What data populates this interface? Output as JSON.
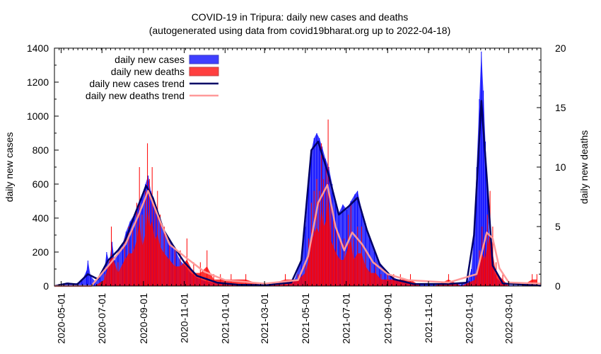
{
  "chart_data": {
    "type": "bar",
    "title": "COVID-19 in Tripura: daily new cases and deaths",
    "subtitle": "(autogenerated using data from covid19bharat.org up to 2022-04-18)",
    "ylabel": "daily new cases",
    "y2label": "daily new deaths",
    "ylim": [
      0,
      1400
    ],
    "y2lim": [
      0,
      20
    ],
    "xlim": [
      "2020-04-21",
      "2022-04-18"
    ],
    "yticks": [
      "0",
      "200",
      "400",
      "600",
      "800",
      "1000",
      "1200",
      "1400"
    ],
    "y2ticks": [
      "0",
      "5",
      "10",
      "15",
      "20"
    ],
    "xticks": [
      "2020-05-01",
      "2020-07-01",
      "2020-09-01",
      "2020-11-01",
      "2021-01-01",
      "2021-03-01",
      "2021-05-01",
      "2021-07-01",
      "2021-09-01",
      "2021-11-01",
      "2022-01-01",
      "2022-03-01"
    ],
    "legend_position": "top-left",
    "grid": false,
    "colors": {
      "cases": "#0000ff",
      "deaths": "#ff0000",
      "cases_trend": "#000066",
      "deaths_trend": "#ff9999"
    },
    "series": [
      {
        "name": "daily new cases",
        "axis": "left",
        "style": "bars",
        "points": [
          [
            "2020-04-25",
            0
          ],
          [
            "2020-05-05",
            15
          ],
          [
            "2020-05-12",
            20
          ],
          [
            "2020-05-20",
            10
          ],
          [
            "2020-06-01",
            30
          ],
          [
            "2020-06-08",
            90
          ],
          [
            "2020-06-10",
            150
          ],
          [
            "2020-06-14",
            60
          ],
          [
            "2020-06-20",
            30
          ],
          [
            "2020-06-28",
            50
          ],
          [
            "2020-07-05",
            110
          ],
          [
            "2020-07-08",
            200
          ],
          [
            "2020-07-12",
            140
          ],
          [
            "2020-07-16",
            260
          ],
          [
            "2020-07-20",
            150
          ],
          [
            "2020-07-25",
            200
          ],
          [
            "2020-08-01",
            250
          ],
          [
            "2020-08-06",
            320
          ],
          [
            "2020-08-12",
            380
          ],
          [
            "2020-08-18",
            420
          ],
          [
            "2020-08-24",
            480
          ],
          [
            "2020-08-30",
            540
          ],
          [
            "2020-09-04",
            600
          ],
          [
            "2020-09-08",
            650
          ],
          [
            "2020-09-12",
            560
          ],
          [
            "2020-09-16",
            520
          ],
          [
            "2020-09-20",
            450
          ],
          [
            "2020-09-26",
            380
          ],
          [
            "2020-10-02",
            320
          ],
          [
            "2020-10-08",
            270
          ],
          [
            "2020-10-14",
            240
          ],
          [
            "2020-10-20",
            200
          ],
          [
            "2020-10-26",
            150
          ],
          [
            "2020-11-02",
            120
          ],
          [
            "2020-11-10",
            80
          ],
          [
            "2020-11-20",
            50
          ],
          [
            "2020-12-01",
            30
          ],
          [
            "2020-12-15",
            20
          ],
          [
            "2021-01-01",
            10
          ],
          [
            "2021-01-20",
            8
          ],
          [
            "2021-02-10",
            5
          ],
          [
            "2021-03-01",
            4
          ],
          [
            "2021-03-20",
            5
          ],
          [
            "2021-04-05",
            10
          ],
          [
            "2021-04-15",
            40
          ],
          [
            "2021-04-25",
            150
          ],
          [
            "2021-05-01",
            350
          ],
          [
            "2021-05-06",
            600
          ],
          [
            "2021-05-10",
            800
          ],
          [
            "2021-05-14",
            870
          ],
          [
            "2021-05-18",
            900
          ],
          [
            "2021-05-22",
            870
          ],
          [
            "2021-05-26",
            820
          ],
          [
            "2021-05-31",
            750
          ],
          [
            "2021-06-05",
            700
          ],
          [
            "2021-06-10",
            600
          ],
          [
            "2021-06-15",
            500
          ],
          [
            "2021-06-20",
            430
          ],
          [
            "2021-06-26",
            480
          ],
          [
            "2021-07-02",
            450
          ],
          [
            "2021-07-08",
            500
          ],
          [
            "2021-07-14",
            540
          ],
          [
            "2021-07-18",
            560
          ],
          [
            "2021-07-24",
            450
          ],
          [
            "2021-07-30",
            370
          ],
          [
            "2021-08-05",
            280
          ],
          [
            "2021-08-12",
            200
          ],
          [
            "2021-08-20",
            140
          ],
          [
            "2021-08-28",
            100
          ],
          [
            "2021-09-05",
            60
          ],
          [
            "2021-09-15",
            40
          ],
          [
            "2021-09-30",
            20
          ],
          [
            "2021-10-15",
            10
          ],
          [
            "2021-11-01",
            10
          ],
          [
            "2021-11-20",
            10
          ],
          [
            "2021-12-05",
            15
          ],
          [
            "2021-12-20",
            10
          ],
          [
            "2021-12-30",
            30
          ],
          [
            "2022-01-04",
            100
          ],
          [
            "2022-01-08",
            300
          ],
          [
            "2022-01-12",
            700
          ],
          [
            "2022-01-16",
            1100
          ],
          [
            "2022-01-19",
            1380
          ],
          [
            "2022-01-22",
            1150
          ],
          [
            "2022-01-25",
            850
          ],
          [
            "2022-01-28",
            600
          ],
          [
            "2022-01-31",
            300
          ],
          [
            "2022-02-04",
            150
          ],
          [
            "2022-02-10",
            50
          ],
          [
            "2022-02-18",
            20
          ],
          [
            "2022-03-01",
            5
          ],
          [
            "2022-03-15",
            3
          ],
          [
            "2022-04-01",
            2
          ],
          [
            "2022-04-15",
            1
          ]
        ]
      },
      {
        "name": "daily new deaths",
        "axis": "right",
        "style": "bars",
        "points": [
          [
            "2020-05-20",
            0
          ],
          [
            "2020-06-20",
            0
          ],
          [
            "2020-07-05",
            1
          ],
          [
            "2020-07-15",
            5
          ],
          [
            "2020-07-25",
            2
          ],
          [
            "2020-08-04",
            4
          ],
          [
            "2020-08-10",
            5
          ],
          [
            "2020-08-16",
            5
          ],
          [
            "2020-08-22",
            7
          ],
          [
            "2020-08-26",
            10
          ],
          [
            "2020-08-30",
            6
          ],
          [
            "2020-09-04",
            8
          ],
          [
            "2020-09-07",
            12
          ],
          [
            "2020-09-10",
            9
          ],
          [
            "2020-09-14",
            10
          ],
          [
            "2020-09-18",
            7
          ],
          [
            "2020-09-22",
            8
          ],
          [
            "2020-09-26",
            6
          ],
          [
            "2020-10-02",
            5
          ],
          [
            "2020-10-10",
            4
          ],
          [
            "2020-10-18",
            3
          ],
          [
            "2020-10-26",
            3
          ],
          [
            "2020-11-05",
            4
          ],
          [
            "2020-11-15",
            2
          ],
          [
            "2020-11-25",
            2
          ],
          [
            "2020-12-05",
            3
          ],
          [
            "2020-12-15",
            1
          ],
          [
            "2020-12-25",
            1
          ],
          [
            "2021-01-10",
            1
          ],
          [
            "2021-02-01",
            1
          ],
          [
            "2021-03-01",
            0
          ],
          [
            "2021-04-01",
            1
          ],
          [
            "2021-04-20",
            1
          ],
          [
            "2021-05-01",
            2
          ],
          [
            "2021-05-06",
            4
          ],
          [
            "2021-05-10",
            7
          ],
          [
            "2021-05-14",
            8
          ],
          [
            "2021-05-18",
            9
          ],
          [
            "2021-05-22",
            8
          ],
          [
            "2021-05-25",
            12
          ],
          [
            "2021-05-28",
            9
          ],
          [
            "2021-06-01",
            10
          ],
          [
            "2021-06-04",
            14
          ],
          [
            "2021-06-08",
            7
          ],
          [
            "2021-06-12",
            6
          ],
          [
            "2021-06-16",
            5
          ],
          [
            "2021-06-22",
            4
          ],
          [
            "2021-06-28",
            4
          ],
          [
            "2021-07-04",
            6
          ],
          [
            "2021-07-08",
            7
          ],
          [
            "2021-07-12",
            4
          ],
          [
            "2021-07-18",
            5
          ],
          [
            "2021-07-24",
            5
          ],
          [
            "2021-07-30",
            3
          ],
          [
            "2021-08-06",
            2
          ],
          [
            "2021-08-14",
            2
          ],
          [
            "2021-08-22",
            1
          ],
          [
            "2021-09-01",
            1
          ],
          [
            "2021-09-10",
            1
          ],
          [
            "2021-09-20",
            1
          ],
          [
            "2021-10-05",
            1
          ],
          [
            "2021-10-20",
            0
          ],
          [
            "2021-11-10",
            0
          ],
          [
            "2021-12-01",
            1
          ],
          [
            "2021-12-20",
            0
          ],
          [
            "2022-01-10",
            1
          ],
          [
            "2022-01-16",
            3
          ],
          [
            "2022-01-20",
            5
          ],
          [
            "2022-01-24",
            4
          ],
          [
            "2022-01-28",
            6
          ],
          [
            "2022-02-01",
            8
          ],
          [
            "2022-02-05",
            5
          ],
          [
            "2022-02-10",
            2
          ],
          [
            "2022-02-20",
            1
          ],
          [
            "2022-03-01",
            0
          ],
          [
            "2022-03-20",
            0
          ],
          [
            "2022-04-05",
            1
          ],
          [
            "2022-04-12",
            1
          ]
        ]
      },
      {
        "name": "daily new cases trend",
        "axis": "left",
        "style": "line",
        "points": [
          [
            "2020-04-21",
            0
          ],
          [
            "2020-05-10",
            15
          ],
          [
            "2020-05-25",
            10
          ],
          [
            "2020-06-10",
            70
          ],
          [
            "2020-06-25",
            40
          ],
          [
            "2020-07-10",
            150
          ],
          [
            "2020-07-25",
            210
          ],
          [
            "2020-08-05",
            270
          ],
          [
            "2020-08-20",
            430
          ],
          [
            "2020-09-05",
            590
          ],
          [
            "2020-09-15",
            520
          ],
          [
            "2020-10-01",
            330
          ],
          [
            "2020-10-15",
            240
          ],
          [
            "2020-11-01",
            140
          ],
          [
            "2020-11-20",
            60
          ],
          [
            "2020-12-20",
            20
          ],
          [
            "2021-01-20",
            8
          ],
          [
            "2021-03-01",
            5
          ],
          [
            "2021-04-10",
            20
          ],
          [
            "2021-04-25",
            150
          ],
          [
            "2021-05-10",
            800
          ],
          [
            "2021-05-20",
            850
          ],
          [
            "2021-06-05",
            650
          ],
          [
            "2021-06-20",
            420
          ],
          [
            "2021-07-05",
            470
          ],
          [
            "2021-07-18",
            520
          ],
          [
            "2021-08-01",
            330
          ],
          [
            "2021-08-20",
            130
          ],
          [
            "2021-09-10",
            40
          ],
          [
            "2021-10-10",
            12
          ],
          [
            "2021-12-01",
            12
          ],
          [
            "2021-12-28",
            20
          ],
          [
            "2022-01-08",
            300
          ],
          [
            "2022-01-19",
            1090
          ],
          [
            "2022-01-27",
            650
          ],
          [
            "2022-02-05",
            120
          ],
          [
            "2022-02-20",
            15
          ],
          [
            "2022-04-18",
            2
          ]
        ]
      },
      {
        "name": "daily new deaths trend",
        "axis": "right",
        "style": "line",
        "points": [
          [
            "2020-04-21",
            0
          ],
          [
            "2020-06-15",
            0
          ],
          [
            "2020-07-15",
            2
          ],
          [
            "2020-08-05",
            3.5
          ],
          [
            "2020-08-25",
            6
          ],
          [
            "2020-09-08",
            8
          ],
          [
            "2020-09-22",
            6
          ],
          [
            "2020-10-10",
            3.5
          ],
          [
            "2020-11-01",
            2.5
          ],
          [
            "2020-12-01",
            1.2
          ],
          [
            "2021-01-01",
            0.5
          ],
          [
            "2021-03-01",
            0.2
          ],
          [
            "2021-04-20",
            0.5
          ],
          [
            "2021-05-05",
            2.5
          ],
          [
            "2021-05-20",
            7
          ],
          [
            "2021-06-03",
            8.5
          ],
          [
            "2021-06-15",
            5
          ],
          [
            "2021-06-28",
            3
          ],
          [
            "2021-07-10",
            4.5
          ],
          [
            "2021-07-25",
            3.5
          ],
          [
            "2021-08-10",
            2
          ],
          [
            "2021-09-01",
            1
          ],
          [
            "2021-10-01",
            0.5
          ],
          [
            "2021-12-01",
            0.3
          ],
          [
            "2022-01-12",
            1
          ],
          [
            "2022-01-27",
            4.5
          ],
          [
            "2022-02-05",
            4
          ],
          [
            "2022-02-15",
            1.5
          ],
          [
            "2022-03-01",
            0.3
          ],
          [
            "2022-04-18",
            0.2
          ]
        ]
      }
    ]
  }
}
